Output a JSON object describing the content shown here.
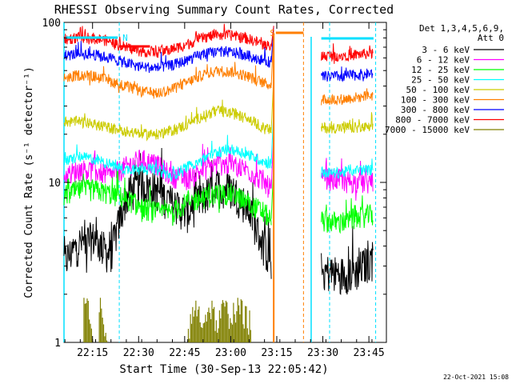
{
  "chart_data": {
    "type": "line",
    "title": "RHESSI Observing Summary Count Rates, Corrected",
    "xlabel": "Start Time (30-Sep-13 22:05:42)",
    "ylabel": "Corrected Count Rate (s⁻¹ detector⁻¹)",
    "y_scale": "log",
    "ylim": [
      1,
      100
    ],
    "xlim_minutes": [
      0,
      105
    ],
    "x_ticks": [
      {
        "t": 9.3,
        "label": "22:15"
      },
      {
        "t": 24.3,
        "label": "22:30"
      },
      {
        "t": 39.3,
        "label": "22:45"
      },
      {
        "t": 54.3,
        "label": "23:00"
      },
      {
        "t": 69.3,
        "label": "23:15"
      },
      {
        "t": 84.3,
        "label": "23:30"
      },
      {
        "t": 99.3,
        "label": "23:45"
      }
    ],
    "y_ticks": [
      {
        "v": 1,
        "label": "1"
      },
      {
        "v": 10,
        "label": "10"
      },
      {
        "v": 100,
        "label": "100"
      }
    ],
    "legend_title": [
      "Det 1,3,4,5,6,9,",
      "Att 0"
    ],
    "legend_position": "right",
    "footer_date": "22-Oct-2021 15:08",
    "flags": [
      {
        "label": "N",
        "color": "#00e0ff",
        "t": 18.0
      },
      {
        "label": "S",
        "color": "#ff7f00",
        "t": 66.0
      }
    ],
    "grid": false,
    "series": [
      {
        "name": "3 - 6 keV",
        "color": "#000000",
        "x": [
          0,
          5,
          10,
          15,
          20,
          25,
          30,
          35,
          40,
          45,
          50,
          55,
          60,
          65,
          68,
          80,
          85,
          90,
          95,
          100
        ],
        "y": [
          3.2,
          4.2,
          4.5,
          3.5,
          8.0,
          10.0,
          9.0,
          7.5,
          6.5,
          8.0,
          9.5,
          9.0,
          7.0,
          4.0,
          3.2,
          2.5,
          2.8,
          2.7,
          2.8,
          3.3
        ]
      },
      {
        "name": "6 - 12 keV",
        "color": "#ff00ff",
        "x": [
          0,
          5,
          10,
          15,
          20,
          25,
          30,
          35,
          40,
          45,
          50,
          55,
          60,
          65,
          68,
          80,
          85,
          90,
          95,
          100
        ],
        "y": [
          11,
          12,
          12,
          11,
          12.5,
          14,
          13,
          11,
          10.5,
          12,
          13,
          13,
          12,
          10,
          9,
          9.5,
          10.5,
          10.5,
          10,
          10
        ]
      },
      {
        "name": "12 - 25 keV",
        "color": "#00ff00",
        "x": [
          0,
          5,
          10,
          15,
          20,
          25,
          30,
          35,
          40,
          45,
          50,
          55,
          60,
          65,
          68,
          80,
          85,
          90,
          95,
          100
        ],
        "y": [
          8.3,
          9.0,
          9.0,
          8.5,
          8.0,
          7.0,
          6.5,
          6.5,
          7.5,
          8.0,
          8.5,
          8.5,
          7.5,
          6.5,
          5.8,
          5.5,
          5.8,
          5.6,
          6.0,
          6.3
        ]
      },
      {
        "name": "25 - 50 keV",
        "color": "#00ffff",
        "x": [
          0,
          5,
          10,
          15,
          20,
          25,
          30,
          35,
          40,
          45,
          50,
          55,
          60,
          65,
          68,
          80,
          85,
          90,
          95,
          100
        ],
        "y": [
          13.5,
          14.5,
          14.0,
          13.0,
          12.0,
          12.5,
          12.0,
          11.0,
          12.5,
          14.0,
          15.5,
          16.0,
          15.0,
          13.5,
          13.0,
          12.0,
          11.5,
          11.5,
          12.0,
          12.0
        ]
      },
      {
        "name": "50 - 100 keV",
        "color": "#cccc00",
        "x": [
          0,
          5,
          10,
          15,
          20,
          25,
          30,
          35,
          40,
          45,
          50,
          55,
          60,
          65,
          68,
          80,
          85,
          90,
          95,
          100
        ],
        "y": [
          24,
          24,
          23,
          22,
          21,
          20,
          20,
          21,
          23,
          26,
          28,
          27,
          25,
          22,
          21,
          22,
          22,
          22,
          22,
          22
        ]
      },
      {
        "name": "100 - 300 keV",
        "color": "#ff7f00",
        "x": [
          0,
          5,
          10,
          15,
          20,
          25,
          30,
          35,
          40,
          45,
          50,
          55,
          60,
          65,
          68,
          80,
          85,
          90,
          95,
          100
        ],
        "y": [
          45,
          47,
          46,
          43,
          40,
          37,
          36,
          38,
          42,
          47,
          50,
          49,
          46,
          42,
          40,
          32,
          33,
          33,
          34,
          35
        ]
      },
      {
        "name": "300 - 800 keV",
        "color": "#0000ff",
        "x": [
          0,
          5,
          10,
          15,
          20,
          25,
          30,
          35,
          40,
          45,
          50,
          55,
          60,
          65,
          68,
          80,
          85,
          90,
          95,
          100
        ],
        "y": [
          62,
          64,
          63,
          60,
          56,
          53,
          52,
          54,
          58,
          63,
          66,
          65,
          62,
          58,
          56,
          45,
          46,
          46,
          47,
          48
        ]
      },
      {
        "name": "800 - 7000 keV",
        "color": "#ff0000",
        "x": [
          0,
          5,
          10,
          15,
          20,
          25,
          30,
          35,
          40,
          45,
          50,
          55,
          60,
          65,
          68,
          80,
          85,
          90,
          95,
          100
        ],
        "y": [
          78,
          81,
          80,
          76,
          70,
          66,
          65,
          68,
          73,
          80,
          84,
          83,
          79,
          73,
          70,
          61,
          62,
          62,
          63,
          64
        ]
      },
      {
        "name": "7000 - 15000 keV",
        "color": "#808000",
        "x": [
          8,
          9,
          12,
          13,
          41,
          43,
          45,
          48,
          50,
          52,
          54,
          57,
          60
        ],
        "y": [
          1.6,
          1.0,
          1.6,
          1.0,
          1.2,
          1.6,
          1.3,
          1.6,
          1.2,
          1.6,
          1.4,
          1.6,
          1.3
        ]
      }
    ]
  }
}
